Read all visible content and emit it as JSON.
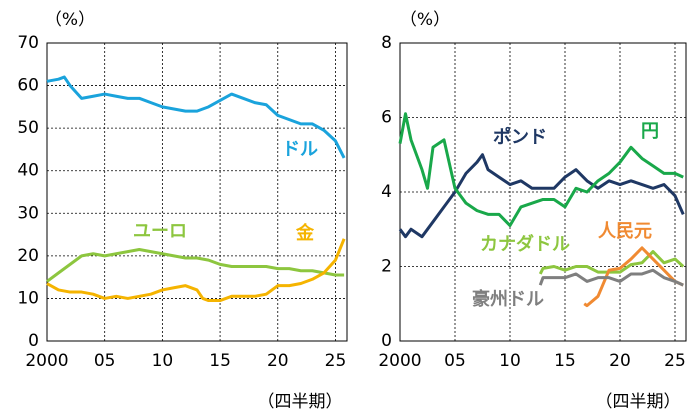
{
  "chart_data": [
    {
      "type": "line",
      "y_unit": "（%）",
      "x_label": "（四半期）",
      "xlim": [
        2000,
        2026
      ],
      "xticks": [
        2000,
        {
          "value": 2005,
          "label": "05"
        },
        {
          "value": 2010,
          "label": "10"
        },
        {
          "value": 2015,
          "label": "15"
        },
        {
          "value": 2020,
          "label": "20"
        },
        {
          "value": 2025,
          "label": "25"
        }
      ],
      "ylim": [
        0,
        70
      ],
      "yticks": [
        0,
        10,
        20,
        30,
        40,
        50,
        60,
        70
      ],
      "grid": true,
      "series": [
        {
          "name": "ドル",
          "color": "#1aa3dc",
          "x": [
            2000,
            2001,
            2001.5,
            2002,
            2003,
            2004,
            2005,
            2006,
            2007,
            2008,
            2009,
            2010,
            2011,
            2012,
            2013,
            2014,
            2015,
            2016,
            2017,
            2018,
            2019,
            2020,
            2021,
            2022,
            2023,
            2024,
            2025,
            2025.75
          ],
          "values": [
            61,
            61.5,
            62,
            60,
            57,
            57.5,
            58,
            57.5,
            57,
            57,
            56,
            55,
            54.5,
            54,
            54,
            55,
            56.5,
            58,
            57,
            56,
            55.5,
            53,
            52,
            51,
            51,
            49.5,
            47,
            43
          ]
        },
        {
          "name": "ユーロ",
          "color": "#8dc63f",
          "x": [
            2000,
            2001,
            2002,
            2003,
            2004,
            2005,
            2006,
            2007,
            2008,
            2009,
            2010,
            2011,
            2012,
            2013,
            2014,
            2015,
            2016,
            2017,
            2018,
            2019,
            2020,
            2021,
            2022,
            2023,
            2024,
            2025,
            2025.75
          ],
          "values": [
            14,
            16,
            18,
            20,
            20.5,
            20,
            20.5,
            21,
            21.5,
            21,
            20.5,
            20,
            19.5,
            19.5,
            19,
            18,
            17.5,
            17.5,
            17.5,
            17.5,
            17,
            17,
            16.5,
            16.5,
            16,
            15.5,
            15.5
          ]
        },
        {
          "name": "金",
          "color": "#f5b400",
          "x": [
            2000,
            2001,
            2002,
            2003,
            2004,
            2005,
            2006,
            2007,
            2008,
            2009,
            2010,
            2011,
            2012,
            2013,
            2013.5,
            2014,
            2015,
            2016,
            2017,
            2018,
            2019,
            2020,
            2021,
            2022,
            2023,
            2024,
            2025,
            2025.75
          ],
          "values": [
            13.5,
            12,
            11.5,
            11.5,
            11,
            10,
            10.5,
            10,
            10.5,
            11,
            12,
            12.5,
            13,
            12,
            10,
            9.5,
            9.5,
            10.5,
            10.5,
            10.5,
            11,
            13,
            13,
            13.5,
            14.5,
            16,
            19,
            24
          ]
        }
      ]
    },
    {
      "type": "line",
      "y_unit": "（%）",
      "x_label": "（四半期）",
      "xlim": [
        2000,
        2026
      ],
      "xticks": [
        2000,
        {
          "value": 2005,
          "label": "05"
        },
        {
          "value": 2010,
          "label": "10"
        },
        {
          "value": 2015,
          "label": "15"
        },
        {
          "value": 2020,
          "label": "20"
        },
        {
          "value": 2025,
          "label": "25"
        }
      ],
      "ylim": [
        0,
        8
      ],
      "yticks": [
        0,
        2,
        4,
        6,
        8
      ],
      "grid": true,
      "series": [
        {
          "name": "ポンド",
          "color": "#1f3864",
          "x": [
            2000,
            2000.5,
            2001,
            2002,
            2003,
            2004,
            2005,
            2006,
            2007,
            2007.5,
            2008,
            2009,
            2010,
            2011,
            2012,
            2013,
            2014,
            2015,
            2016,
            2017,
            2018,
            2019,
            2020,
            2021,
            2022,
            2023,
            2024,
            2025,
            2025.75
          ],
          "values": [
            3.0,
            2.8,
            3.0,
            2.8,
            3.2,
            3.6,
            4.0,
            4.5,
            4.8,
            5.0,
            4.6,
            4.4,
            4.2,
            4.3,
            4.1,
            4.1,
            4.1,
            4.4,
            4.6,
            4.3,
            4.1,
            4.3,
            4.2,
            4.3,
            4.2,
            4.1,
            4.2,
            3.9,
            3.4
          ]
        },
        {
          "name": "円",
          "color": "#19a84a",
          "x": [
            2000,
            2000.5,
            2001,
            2002,
            2002.5,
            2003,
            2004,
            2005,
            2006,
            2007,
            2008,
            2009,
            2010,
            2011,
            2012,
            2013,
            2014,
            2015,
            2016,
            2017,
            2018,
            2019,
            2020,
            2021,
            2022,
            2023,
            2024,
            2025,
            2025.75
          ],
          "values": [
            5.3,
            6.1,
            5.4,
            4.6,
            4.1,
            5.2,
            5.4,
            4.1,
            3.7,
            3.5,
            3.4,
            3.4,
            3.1,
            3.6,
            3.7,
            3.8,
            3.8,
            3.6,
            4.1,
            4.0,
            4.3,
            4.5,
            4.8,
            5.2,
            4.9,
            4.7,
            4.5,
            4.5,
            4.4
          ]
        },
        {
          "name": "カナダドル",
          "color": "#8dc63f",
          "x": [
            2012.75,
            2013,
            2014,
            2015,
            2016,
            2017,
            2018,
            2019,
            2020,
            2021,
            2022,
            2023,
            2024,
            2025,
            2025.75
          ],
          "values": [
            1.8,
            1.95,
            2.0,
            1.9,
            2.0,
            2.0,
            1.85,
            1.85,
            1.85,
            2.05,
            2.1,
            2.4,
            2.1,
            2.2,
            2.0
          ]
        },
        {
          "name": "人民元",
          "color": "#f08a32",
          "x": [
            2016.75,
            2017,
            2018,
            2019,
            2020,
            2021,
            2022,
            2023,
            2024,
            2025,
            2025.75
          ],
          "values": [
            1.0,
            0.95,
            1.2,
            1.9,
            1.95,
            2.2,
            2.5,
            2.2,
            1.9,
            1.6,
            1.5
          ]
        },
        {
          "name": "豪州ドル",
          "color": "#7f7f7f",
          "x": [
            2012.75,
            2013,
            2014,
            2015,
            2016,
            2017,
            2018,
            2019,
            2020,
            2021,
            2022,
            2023,
            2024,
            2025,
            2025.75
          ],
          "values": [
            1.5,
            1.7,
            1.7,
            1.7,
            1.8,
            1.6,
            1.7,
            1.7,
            1.6,
            1.8,
            1.8,
            1.9,
            1.7,
            1.6,
            1.5
          ]
        }
      ]
    }
  ]
}
